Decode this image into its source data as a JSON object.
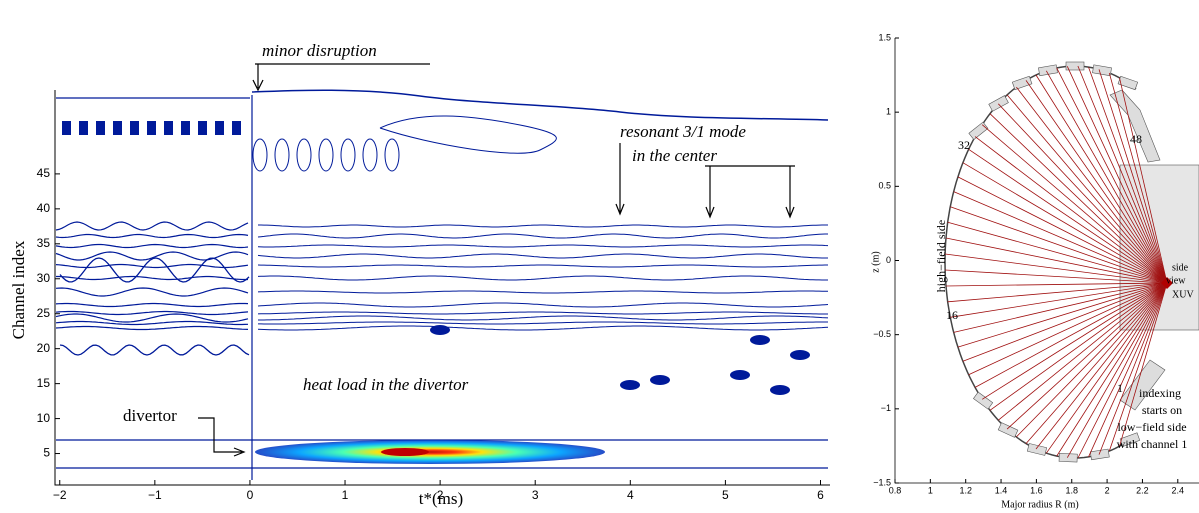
{
  "left_plot": {
    "x_label": "t*(ms)",
    "y_label": "Channel index",
    "xlim": [
      -2.05,
      6.1
    ],
    "ylim": [
      0.5,
      57
    ],
    "xticks": [
      {
        "value": -2,
        "label": "−2"
      },
      {
        "value": -1,
        "label": "−1"
      },
      0,
      1,
      2,
      3,
      4,
      5,
      6
    ],
    "yticks": [
      5,
      10,
      15,
      20,
      25,
      30,
      35,
      40,
      45
    ],
    "annotations": [
      "minor disruption",
      "resonant 3/1 mode",
      "in the center",
      "heat load in the divertor",
      "divertor"
    ]
  },
  "right_plot": {
    "x_label": "Major radius R (m)",
    "y_label": "z (m)",
    "xlim": [
      0.8,
      2.52
    ],
    "ylim": [
      -1.5,
      1.5
    ],
    "xticks": [
      0.8,
      1,
      1.2,
      1.4,
      1.6,
      1.8,
      2,
      2.2,
      2.4
    ],
    "yticks": [
      1.5,
      1,
      0.5,
      0,
      {
        "value": -0.5,
        "label": "−0.5"
      },
      {
        "value": -1,
        "label": "−1"
      },
      {
        "value": -1.5,
        "label": "−1.5"
      }
    ],
    "annotations": [
      "high−field side",
      "32",
      "48",
      "16",
      "1",
      "side",
      "view",
      "XUV",
      "indexing",
      "starts on",
      "low−field side",
      "with channel 1"
    ]
  }
}
